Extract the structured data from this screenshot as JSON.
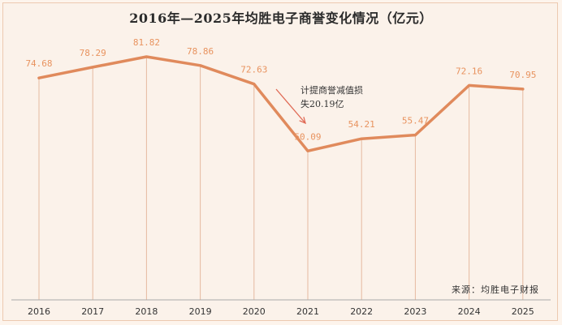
{
  "chart_data": {
    "type": "line",
    "title": "2016年—2025年均胜电子商誉变化情况（亿元）",
    "categories": [
      "2016",
      "2017",
      "2018",
      "2019",
      "2020",
      "2021",
      "2022",
      "2023",
      "2024",
      "2025"
    ],
    "values": [
      74.68,
      78.29,
      81.82,
      78.86,
      72.63,
      50.09,
      54.21,
      55.47,
      72.16,
      70.95
    ],
    "value_labels": [
      "74.68",
      "78.29",
      "81.82",
      "78.86",
      "72.63",
      "50.09",
      "54.21",
      "55.47",
      "72.16",
      "70.95"
    ],
    "ylim": [
      0,
      90
    ],
    "xlabel": "",
    "ylabel": "",
    "annotation": {
      "line1": "计提商誉减值损",
      "line2": "失20.19亿",
      "category": "2021"
    },
    "source": "来源：均胜电子财报",
    "colors": {
      "line": "#e08a5c",
      "label": "#e8935f",
      "arrow": "#e06a55",
      "axis": "#aaaaaa",
      "drop": "#e6b9a0"
    }
  }
}
